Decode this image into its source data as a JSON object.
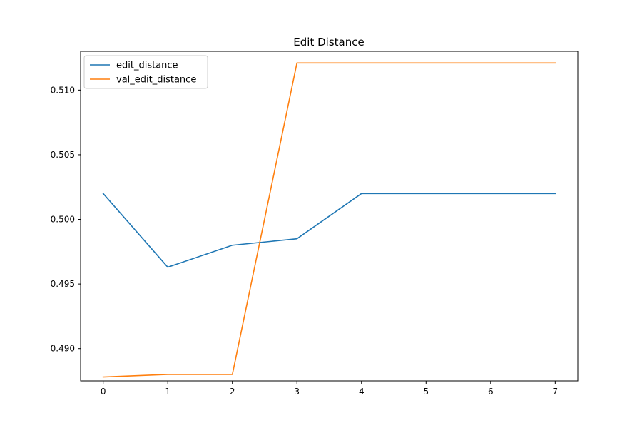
{
  "chart_data": {
    "type": "line",
    "title": "Edit Distance",
    "xlabel": "",
    "ylabel": "",
    "x": [
      0,
      1,
      2,
      3,
      4,
      5,
      6,
      7
    ],
    "xlim": [
      -0.35,
      7.35
    ],
    "ylim": [
      0.4875,
      0.513
    ],
    "xticks": [
      0,
      1,
      2,
      3,
      4,
      5,
      6,
      7
    ],
    "yticks": [
      0.49,
      0.495,
      0.5,
      0.505,
      0.51
    ],
    "ytick_labels": [
      "0.490",
      "0.495",
      "0.500",
      "0.505",
      "0.510"
    ],
    "grid": false,
    "legend_position": "upper-left",
    "series": [
      {
        "name": "edit_distance",
        "color": "#1f77b4",
        "values": [
          0.502,
          0.4963,
          0.498,
          0.4985,
          0.502,
          0.502,
          0.502,
          0.502
        ]
      },
      {
        "name": "val_edit_distance",
        "color": "#ff7f0e",
        "values": [
          0.4878,
          0.488,
          0.488,
          0.5121,
          0.5121,
          0.5121,
          0.5121,
          0.5121
        ]
      }
    ]
  }
}
